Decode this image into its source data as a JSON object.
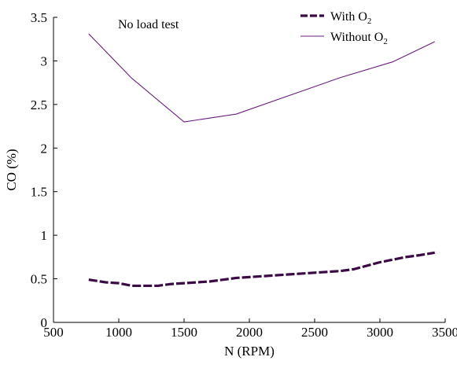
{
  "chart_data": {
    "type": "line",
    "title": "",
    "annotation": "No load test",
    "xlabel": "N (RPM)",
    "ylabel": "CO (%)",
    "xlim": [
      500,
      3500
    ],
    "ylim": [
      0,
      3.5
    ],
    "x_ticks": [
      500,
      1000,
      1500,
      2000,
      2500,
      3000,
      3500
    ],
    "y_ticks": [
      0,
      0.5,
      1,
      1.5,
      2,
      2.5,
      3,
      3.5
    ],
    "x_tick_labels": [
      "500",
      "1000",
      "1500",
      "2000",
      "2500",
      "3000",
      "3500"
    ],
    "y_tick_labels": [
      "0",
      "0.5",
      "1",
      "1.5",
      "2",
      "2.5",
      "3",
      "3.5"
    ],
    "grid": false,
    "legend_position": "top-right",
    "series": [
      {
        "name": "With O2",
        "legend_base": "With O",
        "legend_sub": "2",
        "color": "#3b0a45",
        "style": "thick-dashed",
        "x": [
          770,
          900,
          1000,
          1100,
          1200,
          1300,
          1400,
          1500,
          1600,
          1700,
          1800,
          1900,
          2000,
          2100,
          2200,
          2300,
          2400,
          2500,
          2600,
          2700,
          2800,
          2900,
          3000,
          3100,
          3200,
          3300,
          3420
        ],
        "y": [
          0.49,
          0.46,
          0.45,
          0.42,
          0.42,
          0.42,
          0.44,
          0.45,
          0.46,
          0.47,
          0.49,
          0.51,
          0.52,
          0.53,
          0.54,
          0.55,
          0.56,
          0.57,
          0.58,
          0.59,
          0.61,
          0.65,
          0.69,
          0.72,
          0.75,
          0.77,
          0.8
        ]
      },
      {
        "name": "Without O2",
        "legend_base": "Without O",
        "legend_sub": "2",
        "color": "#6a1f7a",
        "style": "thin-solid",
        "x": [
          770,
          1100,
          1500,
          1900,
          2300,
          2700,
          3100,
          3420
        ],
        "y": [
          3.31,
          2.8,
          2.3,
          2.39,
          2.6,
          2.81,
          2.99,
          3.22
        ]
      }
    ]
  }
}
